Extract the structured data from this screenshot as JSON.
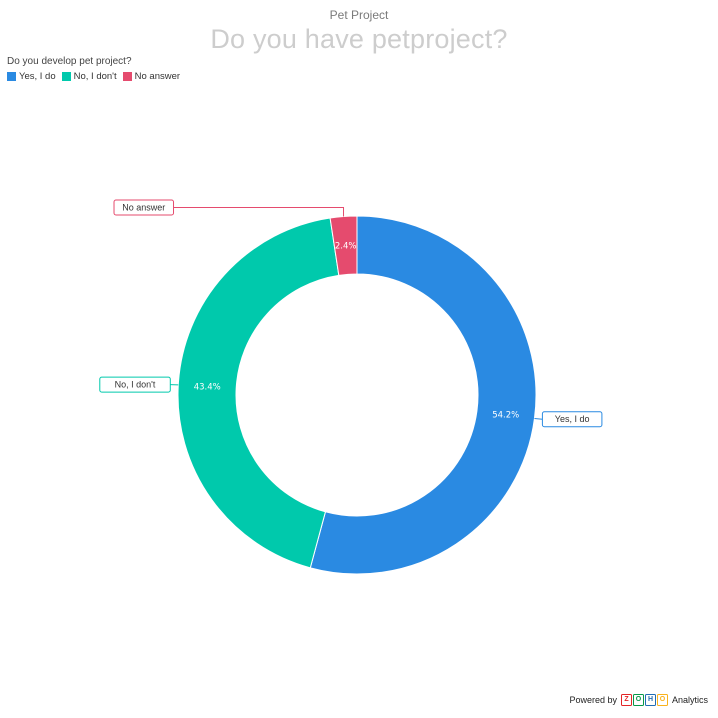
{
  "supertitle": "Pet Project",
  "title": "Do you have petproject?",
  "legend": {
    "title": "Do you develop pet project?",
    "items": [
      {
        "label": "Yes, I do",
        "color": "#2a8ae2"
      },
      {
        "label": "No, I don't",
        "color": "#00c9ac"
      },
      {
        "label": "No answer",
        "color": "#e54b6e"
      }
    ]
  },
  "chart_data": {
    "type": "pie",
    "variant": "donut",
    "title": "Do you have petproject?",
    "categories": [
      "Yes, I do",
      "No, I don't",
      "No answer"
    ],
    "values": [
      54.2,
      43.4,
      2.4
    ],
    "data_labels": [
      "54.2%",
      "43.4%",
      "2.4%"
    ],
    "colors": [
      "#2a8ae2",
      "#00c9ac",
      "#e54b6e"
    ],
    "legend_position": "top-left"
  },
  "footer": {
    "powered_by": "Powered by",
    "logo_letters": [
      "Z",
      "O",
      "H",
      "O"
    ],
    "logo_colors": [
      "#e42527",
      "#089949",
      "#226db4",
      "#f9b21d"
    ],
    "product": "Analytics"
  }
}
